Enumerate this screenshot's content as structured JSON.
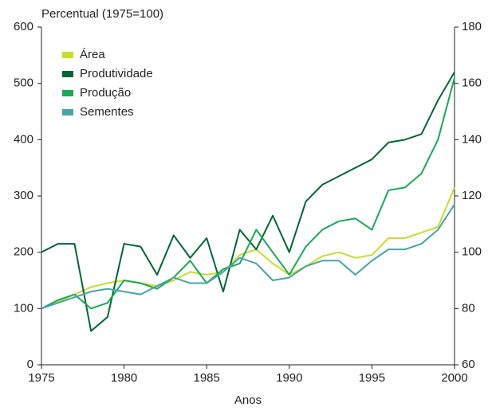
{
  "chart_data": {
    "type": "line",
    "y_label": "Percentual (1975=100)",
    "x_label": "Anos",
    "x": [
      1975,
      1976,
      1977,
      1978,
      1979,
      1980,
      1981,
      1982,
      1983,
      1984,
      1985,
      1986,
      1987,
      1988,
      1989,
      1990,
      1991,
      1992,
      1993,
      1994,
      1995,
      1996,
      1997,
      1998,
      1999,
      2000
    ],
    "series": [
      {
        "name": "Área",
        "color": "#c8dc2e",
        "values": [
          100,
          112,
          125,
          138,
          145,
          150,
          145,
          140,
          150,
          165,
          160,
          165,
          195,
          205,
          180,
          160,
          175,
          193,
          200,
          190,
          195,
          225,
          225,
          235,
          245,
          315
        ]
      },
      {
        "name": "Produtividade",
        "color": "#006633",
        "axis": "y2",
        "values": [
          100,
          103,
          103,
          72,
          77,
          103,
          102,
          92,
          106,
          98,
          105,
          86,
          108,
          101,
          113,
          100,
          118,
          124,
          127,
          130,
          133,
          139,
          140,
          142,
          154,
          164
        ]
      },
      {
        "name": "Produção",
        "color": "#1aa855",
        "values": [
          100,
          115,
          125,
          100,
          110,
          150,
          145,
          135,
          155,
          185,
          145,
          170,
          180,
          240,
          200,
          160,
          210,
          240,
          255,
          260,
          240,
          310,
          315,
          340,
          400,
          510
        ]
      },
      {
        "name": "Sementes",
        "color": "#48a4a8",
        "values": [
          100,
          110,
          120,
          130,
          135,
          130,
          125,
          140,
          155,
          145,
          145,
          165,
          190,
          180,
          150,
          155,
          175,
          185,
          185,
          160,
          185,
          205,
          205,
          215,
          240,
          285
        ]
      }
    ],
    "xlim": [
      1975,
      2000
    ],
    "xticks": [
      1975,
      1980,
      1985,
      1990,
      1995,
      2000
    ],
    "ylim": [
      0,
      600
    ],
    "yticks": [
      0,
      100,
      200,
      300,
      400,
      500,
      600
    ],
    "y2lim": [
      60,
      180
    ],
    "y2ticks": [
      60,
      80,
      100,
      120,
      140,
      160,
      180
    ],
    "legend": "upper-left",
    "grid": false
  }
}
